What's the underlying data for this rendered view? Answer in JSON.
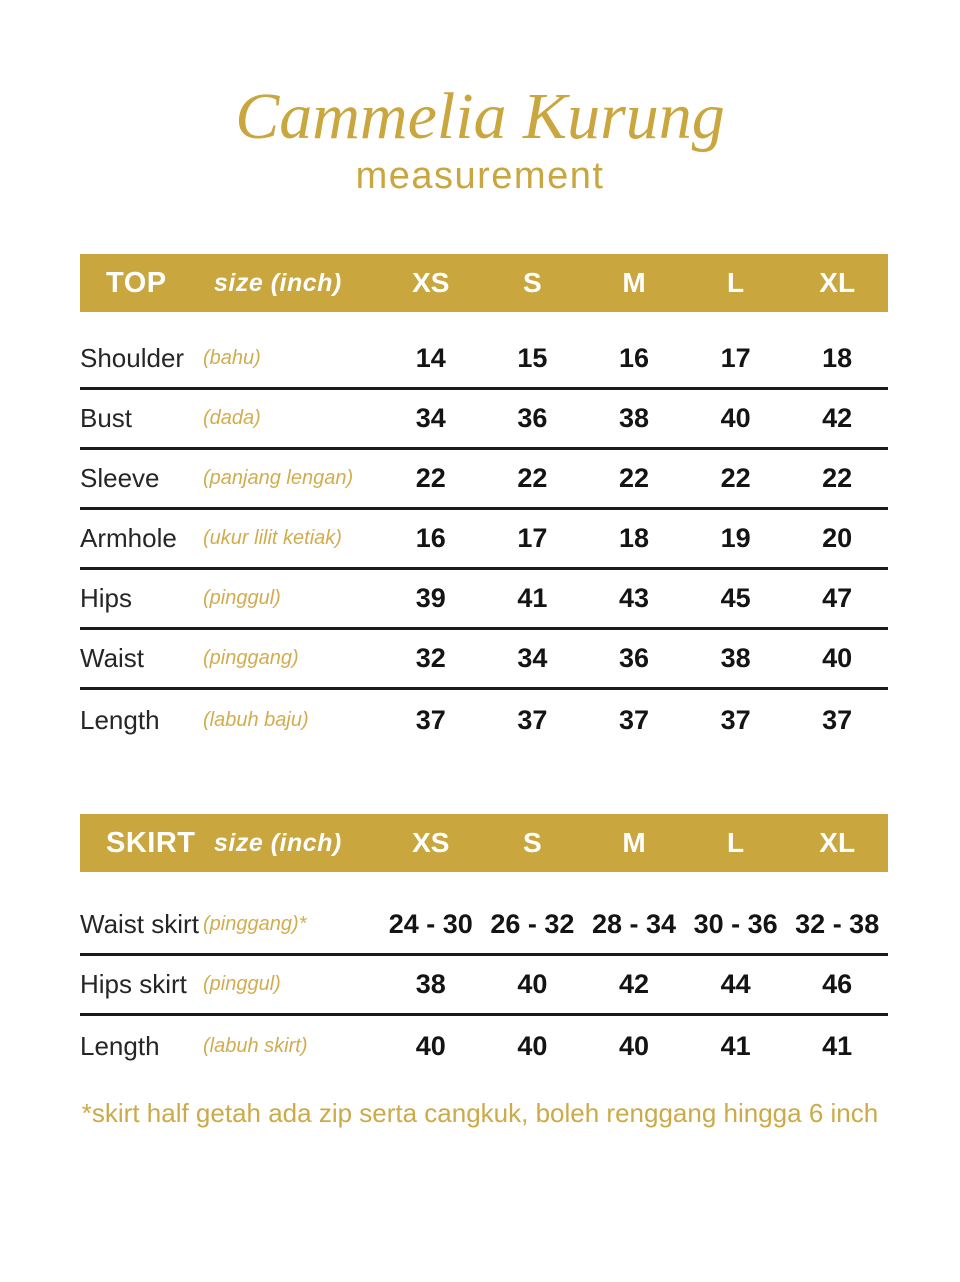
{
  "title": "Cammelia Kurung",
  "subtitle": "measurement",
  "colors": {
    "accent_gold": "#C9A63E",
    "accent_gold_light": "#D2AD4F",
    "band_text": "#FFFFFF",
    "body_text": "#1E1E1E"
  },
  "top_table": {
    "name": "TOP",
    "size_label": "size (inch)",
    "sizes": [
      "XS",
      "S",
      "M",
      "L",
      "XL"
    ],
    "rows": [
      {
        "label": "Shoulder",
        "malay": "(bahu)",
        "values": [
          "14",
          "15",
          "16",
          "17",
          "18"
        ]
      },
      {
        "label": "Bust",
        "malay": "(dada)",
        "values": [
          "34",
          "36",
          "38",
          "40",
          "42"
        ]
      },
      {
        "label": "Sleeve",
        "malay": "(panjang lengan)",
        "values": [
          "22",
          "22",
          "22",
          "22",
          "22"
        ]
      },
      {
        "label": "Armhole",
        "malay": "(ukur lilit ketiak)",
        "values": [
          "16",
          "17",
          "18",
          "19",
          "20"
        ]
      },
      {
        "label": "Hips",
        "malay": "(pinggul)",
        "values": [
          "39",
          "41",
          "43",
          "45",
          "47"
        ]
      },
      {
        "label": "Waist",
        "malay": "(pinggang)",
        "values": [
          "32",
          "34",
          "36",
          "38",
          "40"
        ]
      },
      {
        "label": "Length",
        "malay": "(labuh baju)",
        "values": [
          "37",
          "37",
          "37",
          "37",
          "37"
        ]
      }
    ]
  },
  "skirt_table": {
    "name": "SKIRT",
    "size_label": "size (inch)",
    "sizes": [
      "XS",
      "S",
      "M",
      "L",
      "XL"
    ],
    "rows": [
      {
        "label": "Waist skirt",
        "malay": "(pinggang)*",
        "values": [
          "24 - 30",
          "26 - 32",
          "28 - 34",
          "30 - 36",
          "32 - 38"
        ]
      },
      {
        "label": "Hips skirt",
        "malay": "(pinggul)",
        "values": [
          "38",
          "40",
          "42",
          "44",
          "46"
        ]
      },
      {
        "label": "Length",
        "malay": "(labuh skirt)",
        "values": [
          "40",
          "40",
          "40",
          "41",
          "41"
        ]
      }
    ]
  },
  "footnote": "*skirt half getah ada zip serta cangkuk, boleh renggang hingga 6 inch"
}
